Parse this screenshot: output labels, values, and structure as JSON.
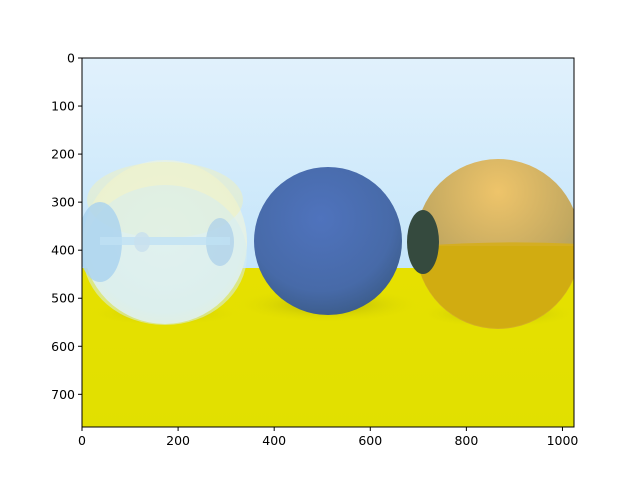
{
  "figure": {
    "x_axis": {
      "ticks": [
        "0",
        "200",
        "400",
        "600",
        "800",
        "1000"
      ],
      "tick_values": [
        0,
        200,
        400,
        600,
        800,
        1000
      ],
      "range": [
        0,
        1024
      ]
    },
    "y_axis": {
      "ticks": [
        "0",
        "100",
        "200",
        "300",
        "400",
        "500",
        "600",
        "700"
      ],
      "tick_values": [
        0,
        100,
        200,
        300,
        400,
        500,
        600,
        700
      ],
      "range": [
        768,
        0
      ],
      "inverted": true
    },
    "image": {
      "description_colors": {
        "sky_top": "#d6ecfb",
        "sky_bottom": "#c7e6fa",
        "ground": "#e3e200",
        "blue_sphere": "#4b6eb3",
        "gold_sphere": "#e8b24a",
        "glass_sphere": "#e6f2ec"
      }
    }
  }
}
